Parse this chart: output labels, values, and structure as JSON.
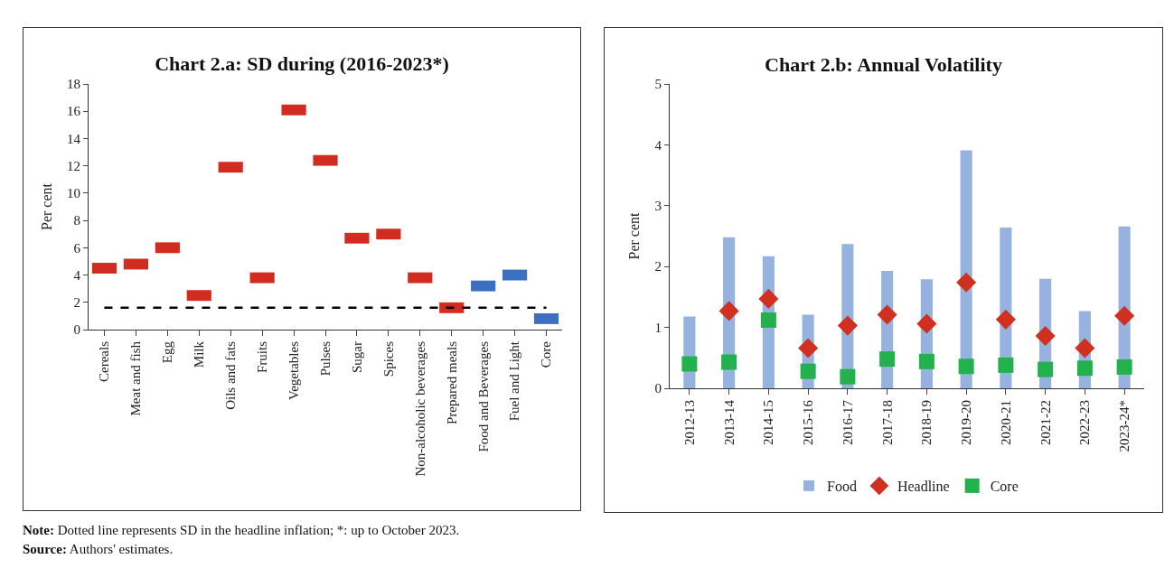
{
  "chart_data": [
    {
      "type": "scatter",
      "title": "Chart 2.a: SD during (2016-2023*)",
      "ylabel": "Per cent",
      "categories": [
        "Cereals",
        "Meat and fish",
        "Egg",
        "Milk",
        "Oils and fats",
        "Fruits",
        "Vegetables",
        "Pulses",
        "Sugar",
        "Spices",
        "Non-alcoholic beverages",
        "Prepared meals",
        "Food and Beverages",
        "Fuel and Light",
        "Core"
      ],
      "values": [
        4.5,
        4.8,
        6.0,
        2.5,
        11.9,
        3.8,
        16.1,
        12.4,
        6.7,
        7.0,
        3.8,
        1.6,
        3.2,
        4.0,
        0.8
      ],
      "colors": [
        "#d22b20",
        "#d22b20",
        "#d22b20",
        "#d22b20",
        "#d22b20",
        "#d22b20",
        "#d22b20",
        "#d22b20",
        "#d22b20",
        "#d22b20",
        "#d22b20",
        "#d22b20",
        "#3a70bf",
        "#3a70bf",
        "#3a70bf"
      ],
      "ylim": [
        0,
        18
      ],
      "yticks": [
        0,
        2,
        4,
        6,
        8,
        10,
        12,
        14,
        16,
        18
      ],
      "grid": false,
      "legend": false,
      "marker": "square",
      "ref_lines": [
        {
          "axis": "y",
          "value": 1.6,
          "color": "#000000",
          "line_style": "dashed"
        }
      ],
      "annotations": [
        "Note: Dotted line represents SD in the headline inflation; *: up to October 2023.",
        "Source: Authors' estimates."
      ]
    },
    {
      "type": "bar",
      "title": "Chart 2.b: Annual Volatility",
      "ylabel": "Per cent",
      "categories": [
        "2012-13",
        "2013-14",
        "2014-15",
        "2015-16",
        "2016-17",
        "2017-18",
        "2018-19",
        "2019-20",
        "2020-21",
        "2021-22",
        "2022-23",
        "2023-24*"
      ],
      "series": [
        {
          "name": "Food",
          "color": "#95b3de",
          "values": [
            1.18,
            2.48,
            2.17,
            1.21,
            2.37,
            1.93,
            1.79,
            3.91,
            2.64,
            1.8,
            1.27,
            2.66
          ]
        },
        {
          "name": "Headline",
          "type": "scatter",
          "marker": "diamond",
          "color": "#d03020",
          "values": [
            null,
            1.27,
            1.47,
            0.66,
            1.03,
            1.21,
            1.06,
            1.74,
            1.13,
            0.86,
            0.66,
            1.19
          ]
        },
        {
          "name": "Core",
          "type": "scatter",
          "marker": "square",
          "color": "#22b14c",
          "values": [
            0.4,
            0.43,
            1.12,
            0.28,
            0.19,
            0.48,
            0.44,
            0.36,
            0.38,
            0.31,
            0.33,
            0.35
          ]
        }
      ],
      "ylim": [
        0,
        5
      ],
      "yticks": [
        0,
        1,
        2,
        3,
        4,
        5
      ],
      "grid": false,
      "legend": "bottom"
    }
  ]
}
